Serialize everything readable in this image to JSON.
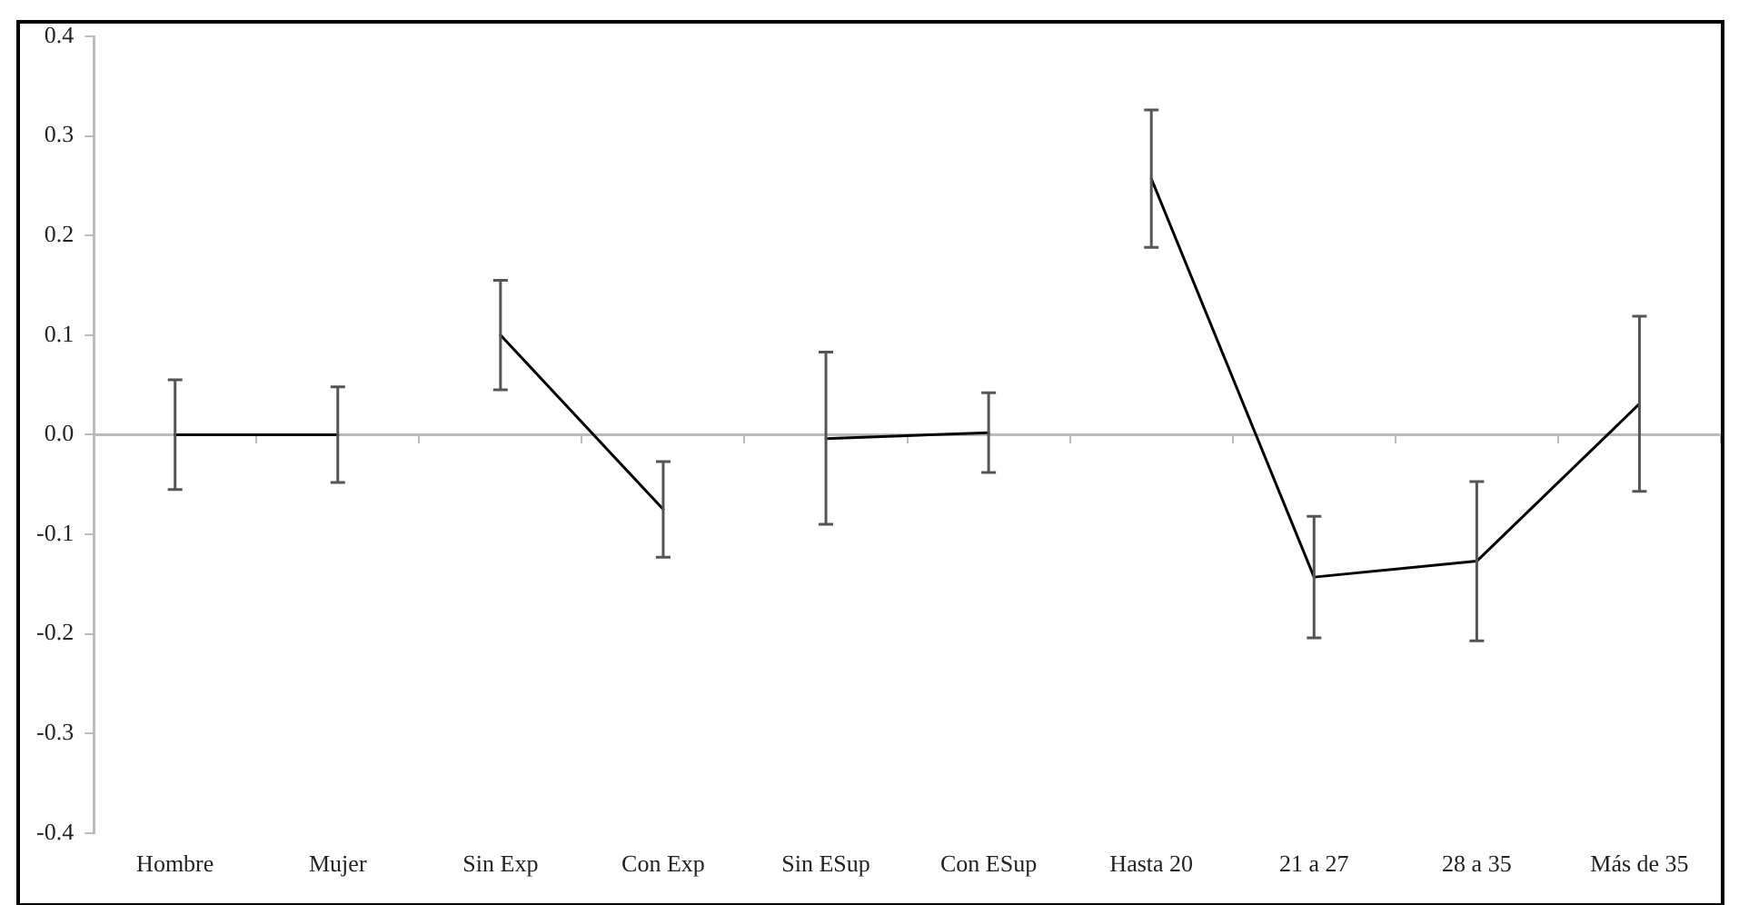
{
  "chart_data": {
    "type": "line",
    "categories": [
      "Hombre",
      "Mujer",
      "Sin Exp",
      "Con Exp",
      "Sin ESup",
      "Con ESup",
      "Hasta 20",
      "21 a 27",
      "28 a 35",
      "Más de 35"
    ],
    "series": [
      {
        "color": "#000000",
        "values": [
          0.0,
          0.0,
          null,
          null,
          null,
          null,
          null,
          null,
          null,
          null
        ],
        "errors": [
          0.055,
          0.048,
          null,
          null,
          null,
          null,
          null,
          null,
          null,
          null
        ]
      },
      {
        "color": "#000000",
        "values": [
          null,
          null,
          0.1,
          -0.075,
          null,
          null,
          null,
          null,
          null,
          null
        ],
        "errors": [
          null,
          null,
          0.055,
          0.048,
          null,
          null,
          null,
          null,
          null,
          null
        ]
      },
      {
        "color": "#000000",
        "values": [
          null,
          null,
          null,
          null,
          -0.004,
          0.002,
          null,
          null,
          null,
          null
        ],
        "errors": [
          null,
          null,
          null,
          null,
          [
            -0.09,
            0.083
          ],
          0.04,
          null,
          null,
          null,
          null
        ]
      },
      {
        "color": "#000000",
        "values": [
          null,
          null,
          null,
          null,
          null,
          null,
          0.257,
          -0.143,
          -0.127,
          0.031
        ],
        "errors": [
          null,
          null,
          null,
          null,
          null,
          null,
          0.069,
          0.061,
          0.08,
          0.088
        ]
      }
    ],
    "ylim": [
      -0.4,
      0.4
    ],
    "yticks": [
      -0.4,
      -0.3,
      -0.2,
      -0.1,
      {
        "value": 0,
        "label": "0.0"
      },
      0.1,
      0.2,
      0.3,
      0.4
    ],
    "legend": false,
    "marker": "none",
    "line_style": "solid"
  }
}
